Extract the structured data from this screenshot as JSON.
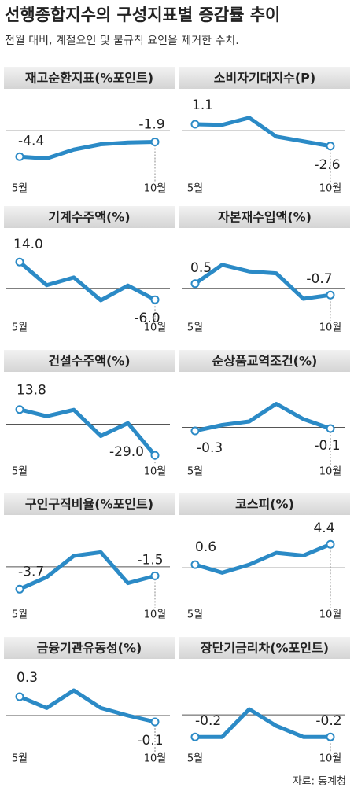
{
  "header": {
    "title": "선행종합지수의 구성지표별 증감률 추이",
    "subtitle": "전월 대비, 계절요인 및 불규칙 요인을 제거한 수치."
  },
  "source": "자료: 통계청",
  "chart_data": [
    {
      "type": "line",
      "title": "재고순환지표(%포인트)",
      "categories": [
        "5월",
        null,
        null,
        null,
        null,
        "10월"
      ],
      "values": [
        -4.4,
        -4.7,
        -3.2,
        -2.3,
        -2.0,
        -1.9
      ],
      "value_labels": [
        "-4.4",
        null,
        null,
        null,
        null,
        "-1.9"
      ],
      "ylim": [
        -6.5,
        5.5
      ],
      "baseline": 0,
      "color": "#2b8ac6"
    },
    {
      "type": "line",
      "title": "소비자기대지수(P)",
      "categories": [
        "5월",
        null,
        null,
        null,
        null,
        "10월"
      ],
      "values": [
        1.1,
        1.0,
        2.2,
        -1.0,
        -1.8,
        -2.6
      ],
      "value_labels": [
        "1.1",
        null,
        null,
        null,
        null,
        "-2.6"
      ],
      "ylim": [
        -6.5,
        5.5
      ],
      "baseline": 0,
      "color": "#2b8ac6"
    },
    {
      "type": "line",
      "title": "기계수주액(%)",
      "categories": [
        "5월",
        null,
        null,
        null,
        null,
        "10월"
      ],
      "values": [
        14.0,
        1.7,
        5.8,
        -6.3,
        1.5,
        -6.0
      ],
      "value_labels": [
        "14.0",
        null,
        null,
        null,
        null,
        "-6.0"
      ],
      "ylim": [
        -10.5,
        27
      ],
      "baseline": 0,
      "color": "#2b8ac6"
    },
    {
      "type": "line",
      "title": "자본재수입액(%)",
      "categories": [
        "5월",
        null,
        null,
        null,
        null,
        "10월"
      ],
      "values": [
        0.5,
        2.5,
        1.8,
        1.6,
        -1.1,
        -0.7
      ],
      "value_labels": [
        "0.5",
        null,
        null,
        null,
        null,
        "-0.7"
      ],
      "ylim": [
        -2.1,
        5.4
      ],
      "baseline": 0,
      "color": "#2b8ac6"
    },
    {
      "type": "line",
      "title": "건설수주액(%)",
      "categories": [
        "5월",
        null,
        null,
        null,
        null,
        "10월"
      ],
      "values": [
        13.8,
        7.5,
        13.5,
        -11.0,
        1.0,
        -29.0
      ],
      "value_labels": [
        "13.8",
        null,
        null,
        null,
        null,
        "-29.0"
      ],
      "ylim": [
        -26,
        40
      ],
      "baseline": 0,
      "color": "#2b8ac6"
    },
    {
      "type": "line",
      "title": "순상품교역조건(%)",
      "categories": [
        "5월",
        null,
        null,
        null,
        null,
        "10월"
      ],
      "values": [
        -0.3,
        0.2,
        0.5,
        2.0,
        0.7,
        -0.1
      ],
      "value_labels": [
        "-0.3",
        null,
        null,
        null,
        null,
        "-0.1"
      ],
      "ylim": [
        -2.1,
        3.9
      ],
      "baseline": 0,
      "color": "#2b8ac6"
    },
    {
      "type": "line",
      "title": "구인구직비율(%포인트)",
      "categories": [
        "5월",
        null,
        null,
        null,
        null,
        "10월"
      ],
      "values": [
        -3.7,
        -1.7,
        1.8,
        2.4,
        -2.7,
        -1.5
      ],
      "value_labels": [
        "-3.7",
        null,
        null,
        null,
        null,
        "-1.5"
      ],
      "ylim": [
        -4.7,
        7
      ],
      "baseline": 0,
      "color": "#2b8ac6"
    },
    {
      "type": "line",
      "title": "코스피(%)",
      "categories": [
        "5월",
        null,
        null,
        null,
        null,
        "10월"
      ],
      "values": [
        0.6,
        -0.9,
        0.6,
        2.8,
        2.3,
        4.4
      ],
      "value_labels": [
        "0.6",
        null,
        null,
        null,
        null,
        "4.4"
      ],
      "ylim": [
        -5.1,
        8.1
      ],
      "baseline": 0,
      "color": "#2b8ac6"
    },
    {
      "type": "line",
      "title": "금융기관유동성(%)",
      "categories": [
        "5월",
        null,
        null,
        null,
        null,
        "10월"
      ],
      "values": [
        0.3,
        0.12,
        0.4,
        0.12,
        0,
        -0.1
      ],
      "value_labels": [
        "0.3",
        null,
        null,
        null,
        null,
        "-0.1"
      ],
      "ylim": [
        -0.375,
        0.75
      ],
      "baseline": 0,
      "color": "#2b8ac6"
    },
    {
      "type": "line",
      "title": "장단기금리차(%포인트)",
      "categories": [
        "5월",
        null,
        null,
        null,
        null,
        "10월"
      ],
      "values": [
        -0.2,
        -0.2,
        0.05,
        -0.1,
        -0.2,
        -0.2
      ],
      "value_labels": [
        "-0.2",
        null,
        null,
        null,
        null,
        "-0.2"
      ],
      "ylim": [
        -0.22,
        0.42
      ],
      "baseline": 0,
      "color": "#2b8ac6"
    }
  ]
}
